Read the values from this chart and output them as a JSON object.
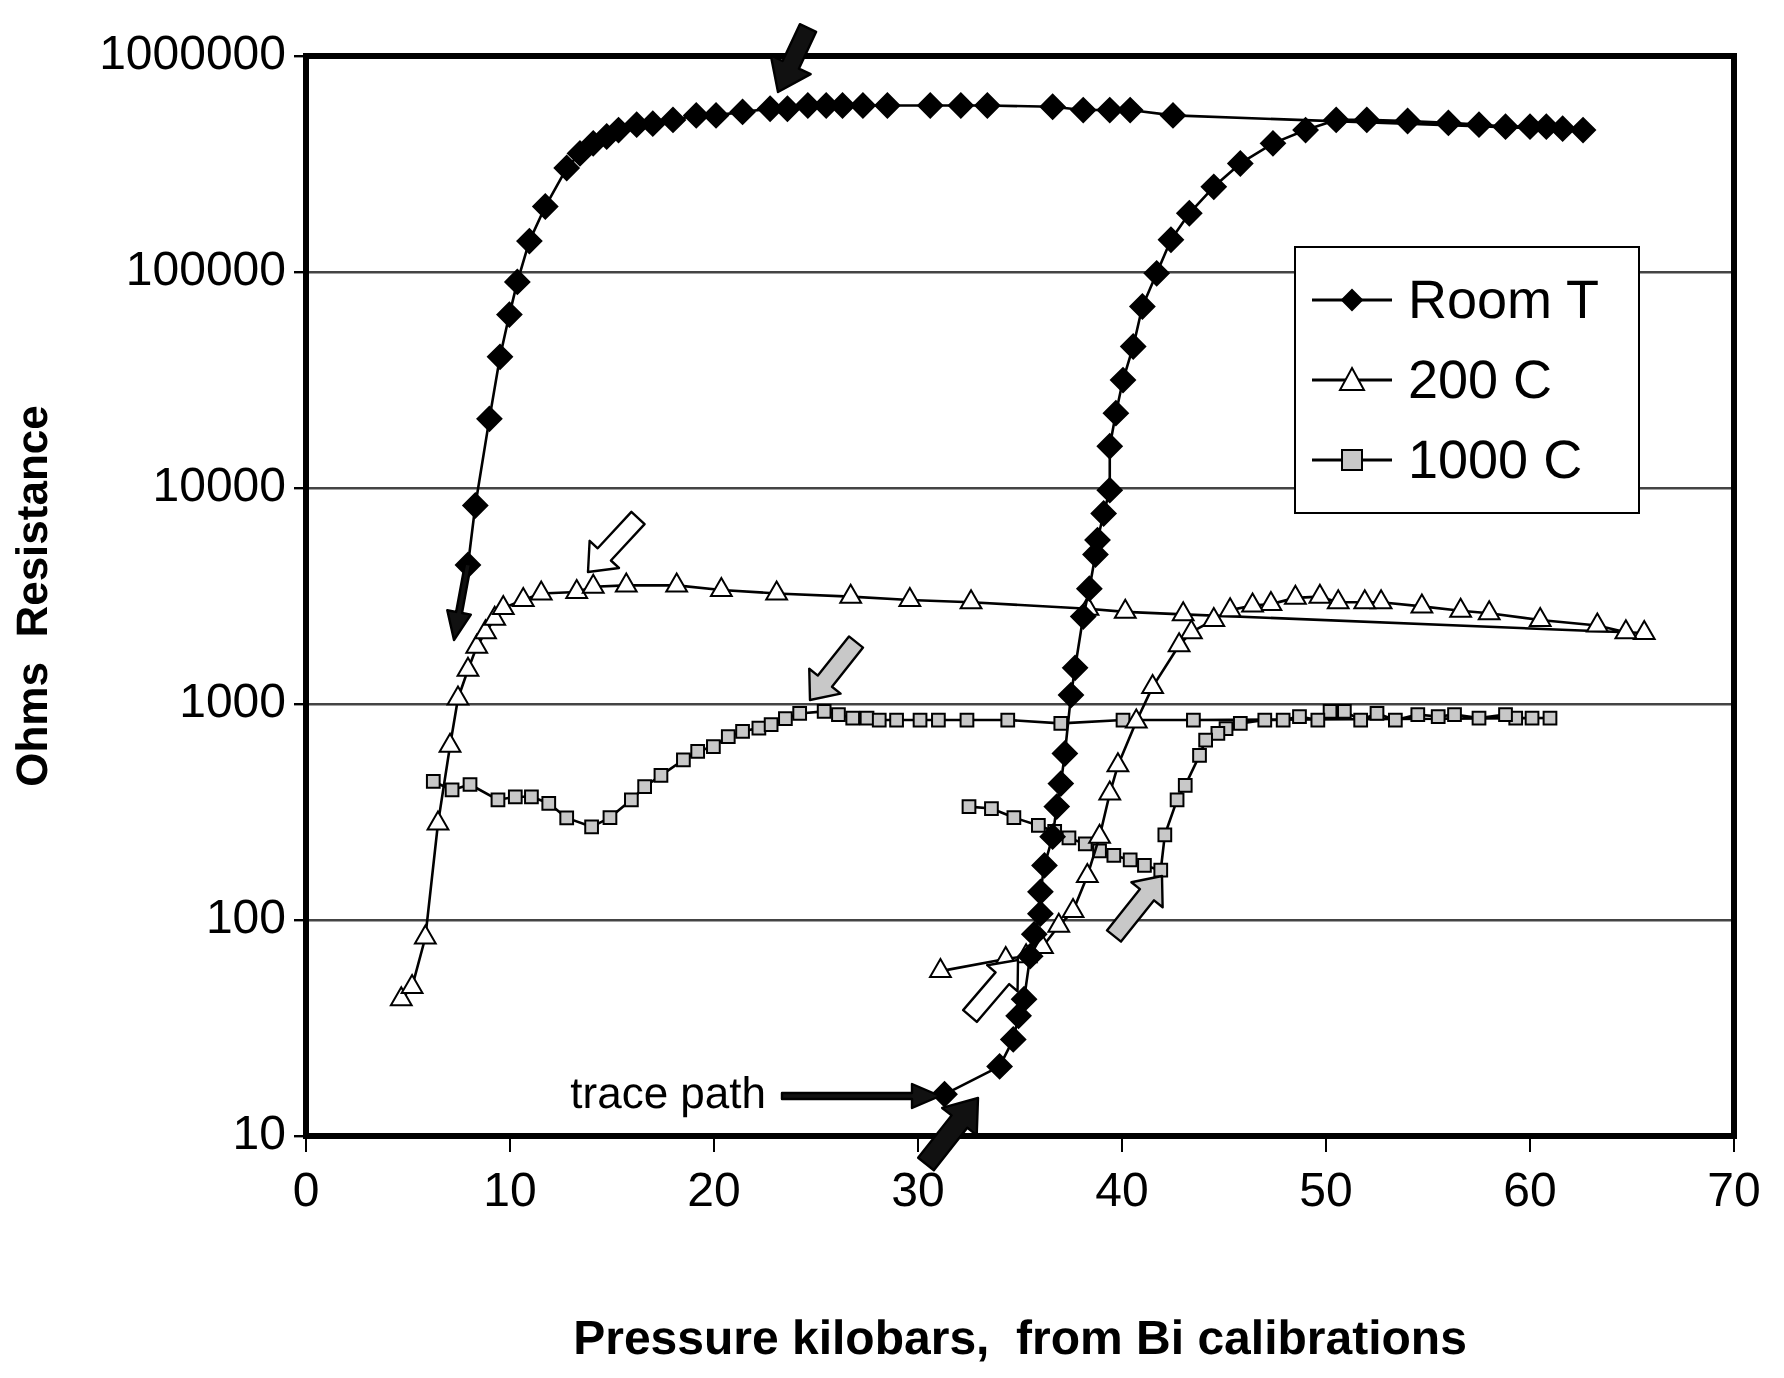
{
  "chart_data": {
    "type": "line",
    "xlabel": "Pressure kilobars,  from Bi calibrations",
    "ylabel": "Ohms  Resistance",
    "log": "y",
    "grid": "y",
    "legend": "right",
    "line_style": "solid",
    "xlim": [
      0,
      70
    ],
    "xticks": [
      0,
      10,
      20,
      30,
      40,
      50,
      60,
      70
    ],
    "ylim": [
      10,
      1000000
    ],
    "yticks": [
      10,
      100,
      1000,
      10000,
      100000,
      1000000
    ],
    "annotations": [
      "trace path"
    ],
    "series": [
      {
        "name": "Room T",
        "color": "#000000",
        "marker": "diamond",
        "x": [
          7.94,
          8.3,
          8.99,
          9.51,
          9.97,
          10.36,
          10.95,
          11.73,
          12.78,
          13.43,
          14.08,
          14.74,
          15.32,
          16.21,
          17.0,
          17.99,
          19.13,
          20.1,
          21.4,
          22.75,
          23.6,
          24.6,
          25.5,
          26.3,
          27.3,
          28.5,
          30.6,
          32.1,
          33.4,
          36.6,
          38.1,
          39.4,
          40.4,
          42.5,
          62.6,
          61.6,
          60.8,
          60.0,
          58.8,
          57.5,
          56,
          54,
          52,
          50.5,
          49.0,
          47.4,
          45.8,
          44.5,
          43.3,
          42.4,
          41.7,
          41.0,
          40.55,
          40.05,
          39.7,
          39.4,
          39.4,
          39.1,
          38.8,
          38.7,
          38.4,
          38.1,
          37.7,
          37.5,
          37.2,
          37.0,
          36.8,
          36.6,
          36.2,
          36.0,
          36.0,
          35.7,
          35.5,
          35.2,
          34.93,
          34.67,
          34.0,
          31.3
        ],
        "values": [
          4400,
          8300,
          20900,
          40500,
          63500,
          90000,
          139000,
          201000,
          303000,
          354000,
          394000,
          424000,
          454000,
          481000,
          486000,
          506000,
          531000,
          531000,
          551000,
          570000,
          570000,
          590000,
          590000,
          590000,
          590000,
          590000,
          590000,
          590000,
          590000,
          582000,
          562000,
          562000,
          562000,
          531000,
          454000,
          461000,
          471000,
          471000,
          471000,
          481000,
          490000,
          500000,
          506000,
          506000,
          454000,
          394000,
          318000,
          248000,
          187000,
          141000,
          98600,
          69200,
          45200,
          31600,
          22200,
          15600,
          9770,
          7620,
          5740,
          4920,
          3420,
          2540,
          1470,
          1100,
          590,
          428,
          335,
          243,
          179,
          135,
          107,
          86,
          68,
          43,
          36,
          28,
          21,
          15.6
        ]
      },
      {
        "name": "200 C",
        "color": "#ffffff",
        "marker": "triangle",
        "x": [
          4.67,
          5.2,
          5.85,
          6.47,
          7.06,
          7.45,
          7.94,
          8.37,
          8.8,
          9.25,
          9.67,
          10.65,
          11.53,
          13.27,
          14.08,
          15.7,
          18.17,
          20.36,
          23.07,
          26.7,
          29.6,
          32.6,
          38.33,
          40.16,
          43.0,
          65.6,
          64.7,
          63.3,
          60.5,
          58.0,
          56.6,
          54.7,
          52.7,
          51.9,
          50.6,
          49.7,
          48.5,
          47.3,
          46.4,
          45.3,
          44.5,
          43.4,
          42.8,
          41.5,
          40.7,
          39.8,
          39.4,
          38.9,
          38.3,
          37.6,
          36.9,
          36.1,
          35.3,
          34.3,
          31.1
        ],
        "values": [
          43,
          49,
          83,
          280,
          640,
          1060,
          1440,
          1840,
          2150,
          2480,
          2780,
          3030,
          3250,
          3300,
          3490,
          3540,
          3540,
          3370,
          3250,
          3140,
          3030,
          2960,
          2760,
          2670,
          2600,
          2130,
          2150,
          2310,
          2450,
          2630,
          2700,
          2830,
          2960,
          2960,
          2960,
          3140,
          3100,
          2900,
          2860,
          2720,
          2450,
          2150,
          1870,
          1200,
          830,
          520,
          385,
          243,
          160,
          110,
          94,
          75,
          68,
          66,
          58
        ]
      },
      {
        "name": "1000 C",
        "color": "#c8c8c8",
        "marker": "square",
        "x": [
          6.24,
          7.16,
          8.04,
          9.41,
          10.26,
          11.05,
          11.9,
          12.78,
          14.0,
          14.9,
          15.95,
          16.6,
          17.4,
          18.5,
          19.2,
          19.97,
          20.7,
          21.4,
          22.2,
          22.8,
          23.5,
          24.2,
          25.4,
          26.1,
          26.8,
          27.5,
          28.1,
          28.95,
          30.1,
          31.0,
          32.4,
          34.4,
          37.0,
          40.05,
          43.5,
          60.98,
          60.1,
          59.3,
          58.8,
          57.5,
          56.3,
          55.5,
          54.5,
          53.4,
          52.5,
          51.7,
          50.9,
          50.2,
          49.6,
          48.7,
          47.9,
          47.0,
          45.8,
          45.1,
          44.7,
          44.1,
          43.8,
          43.1,
          42.7,
          42.1,
          41.9,
          41.1,
          40.4,
          39.6,
          38.9,
          38.2,
          37.4,
          36.7,
          35.9,
          34.7,
          33.6,
          32.5
        ],
        "values": [
          438,
          400,
          424,
          360,
          372,
          372,
          347,
          297,
          270,
          298,
          360,
          414,
          467,
          551,
          604,
          635,
          706,
          747,
          774,
          803,
          855,
          904,
          924,
          893,
          861,
          861,
          843,
          843,
          843,
          843,
          843,
          843,
          813,
          843,
          843,
          861,
          861,
          861,
          893,
          861,
          893,
          875,
          893,
          843,
          904,
          843,
          924,
          924,
          843,
          875,
          843,
          843,
          813,
          769,
          731,
          681,
          578,
          420,
          360,
          248,
          170,
          179,
          190,
          199,
          209,
          225,
          240,
          257,
          274,
          298,
          328,
          335
        ]
      }
    ]
  }
}
